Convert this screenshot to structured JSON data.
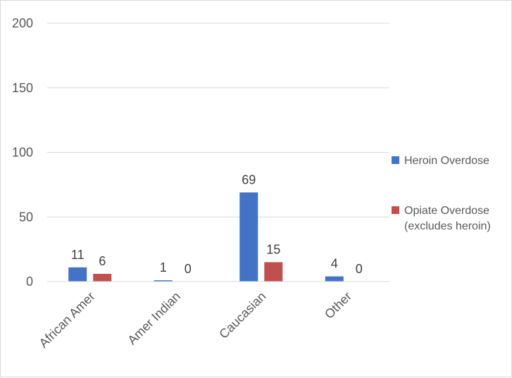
{
  "chart_data": {
    "type": "bar",
    "categories": [
      "African Amer",
      "Amer Indian",
      "Caucasian",
      "Other"
    ],
    "series": [
      {
        "name": "Heroin Overdose",
        "values": [
          11,
          1,
          69,
          4
        ],
        "color": "#4472c4"
      },
      {
        "name": "Opiate Overdose (excludes heroin)",
        "legend_lines": [
          "Opiate Overdose",
          "(excludes heroin)"
        ],
        "values": [
          6,
          0,
          15,
          0
        ],
        "color": "#c0504d"
      }
    ],
    "data_labels": [
      [
        "11",
        "1",
        "69",
        "4"
      ],
      [
        "6",
        "0",
        "15",
        "0"
      ]
    ],
    "y_ticks": [
      "0",
      "50",
      "100",
      "150",
      "200"
    ],
    "ylim": [
      0,
      200
    ],
    "grid": true,
    "legend_position": "right"
  }
}
